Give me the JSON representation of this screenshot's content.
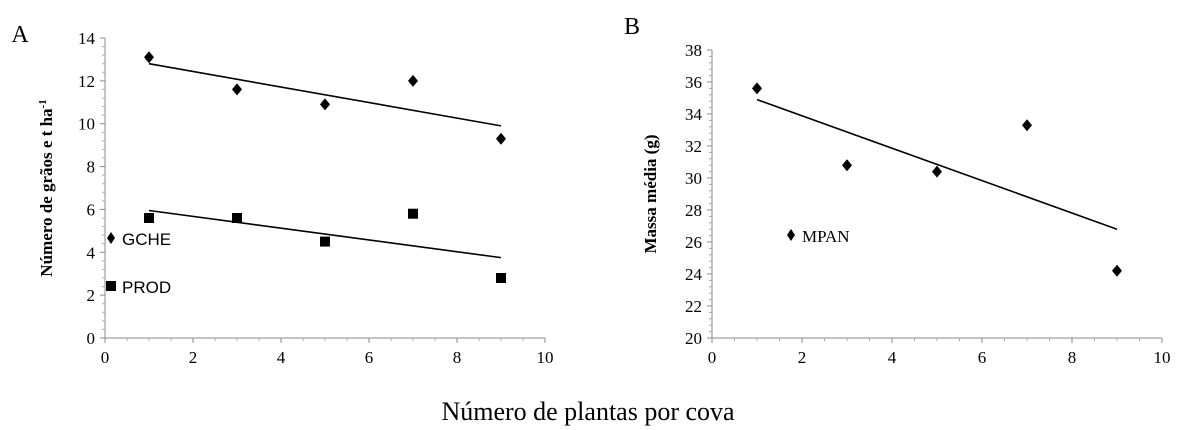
{
  "figure": {
    "shared_xlabel": "Número de plantas por cova"
  },
  "chart_data": [
    {
      "type": "scatter",
      "panel_label": "A",
      "xlabel": "",
      "ylabel": "Número de grãos e t ha",
      "ylabel_superscript": "-1",
      "xlim": [
        0,
        10
      ],
      "ylim": [
        0,
        14
      ],
      "x_ticks": [
        0,
        2,
        4,
        6,
        8,
        10
      ],
      "y_ticks": [
        0,
        2,
        4,
        6,
        8,
        10,
        12,
        14
      ],
      "legend_position": "left",
      "series": [
        {
          "name": "GCHE",
          "marker": "diamond",
          "x": [
            1,
            3,
            5,
            7,
            9
          ],
          "y": [
            13.1,
            11.6,
            10.9,
            12.0,
            9.3
          ],
          "trendline": {
            "x": [
              1,
              9
            ],
            "y": [
              12.8,
              9.9
            ]
          }
        },
        {
          "name": "PROD",
          "marker": "square",
          "x": [
            1,
            3,
            5,
            7,
            9
          ],
          "y": [
            5.6,
            5.6,
            4.5,
            5.8,
            2.8
          ],
          "trendline": {
            "x": [
              1,
              9
            ],
            "y": [
              5.95,
              3.75
            ]
          }
        }
      ]
    },
    {
      "type": "scatter",
      "panel_label": "B",
      "xlabel": "",
      "ylabel": "Massa média (g)",
      "xlim": [
        0,
        10
      ],
      "ylim": [
        20,
        38
      ],
      "x_ticks": [
        0,
        2,
        4,
        6,
        8,
        10
      ],
      "y_ticks": [
        20,
        22,
        24,
        26,
        28,
        30,
        32,
        34,
        36,
        38
      ],
      "legend_position": "left",
      "series": [
        {
          "name": "MPAN",
          "marker": "diamond",
          "x": [
            1,
            3,
            5,
            7,
            9
          ],
          "y": [
            35.6,
            30.8,
            30.4,
            33.3,
            24.2
          ],
          "trendline": {
            "x": [
              1,
              9
            ],
            "y": [
              34.9,
              26.8
            ]
          }
        }
      ]
    }
  ]
}
